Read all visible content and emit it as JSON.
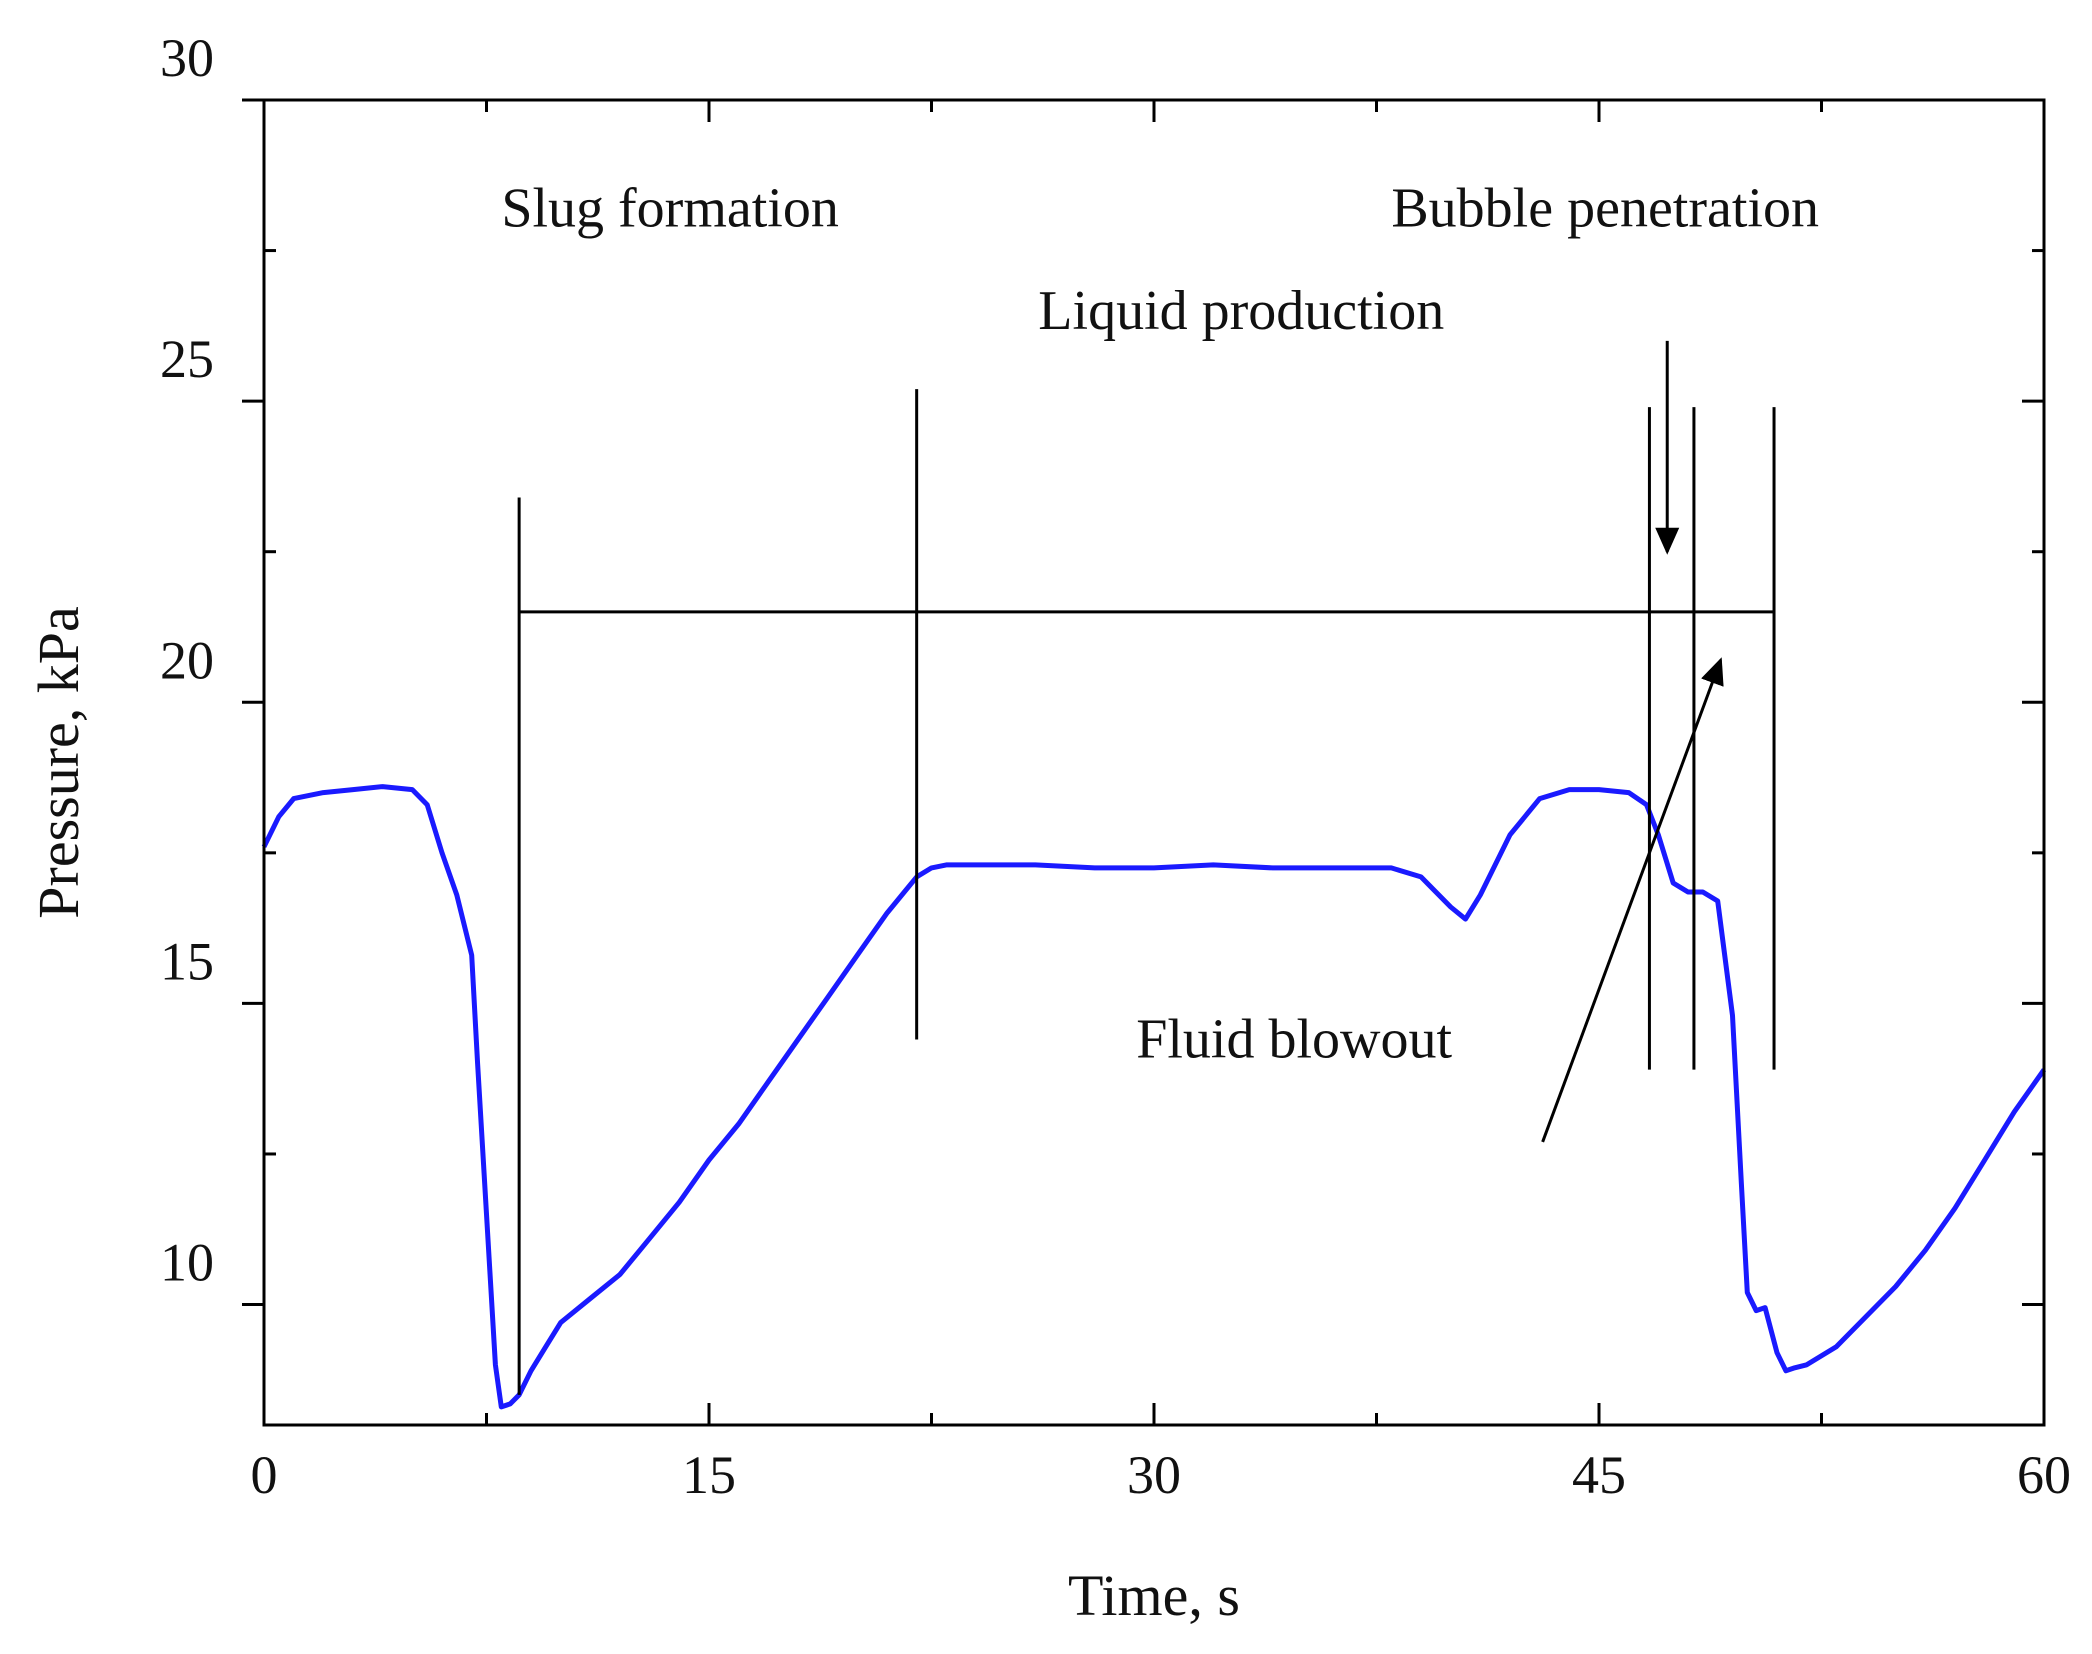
{
  "chart_data": {
    "type": "line",
    "title": "",
    "xlabel": "Time, s",
    "ylabel": "Pressure, kPa",
    "xlim": [
      0,
      60
    ],
    "ylim": [
      8,
      30
    ],
    "x_ticks": [
      0,
      15,
      30,
      45,
      60
    ],
    "x_tick_labels": [
      "0",
      "15",
      "30",
      "45",
      "60"
    ],
    "x_minor_ticks": [
      7.5,
      22.5,
      37.5,
      52.5
    ],
    "y_ticks": [
      10,
      15,
      20,
      25,
      30
    ],
    "y_tick_labels": [
      "10",
      "15",
      "20",
      "25",
      "30"
    ],
    "y_minor_ticks": [
      12.5,
      17.5,
      22.5,
      27.5
    ],
    "grid": false,
    "series": [
      {
        "name": "Pressure",
        "color": "#1a1aff",
        "x": [
          0,
          0.5,
          1,
          2,
          3,
          4,
          5,
          5.5,
          6,
          6.5,
          7,
          7.2,
          7.5,
          7.8,
          8.0,
          8.3,
          8.6,
          9.0,
          9.5,
          10,
          11,
          12,
          13,
          14,
          15,
          16,
          17,
          18,
          19,
          20,
          21,
          22,
          22.5,
          23,
          24,
          26,
          28,
          30,
          32,
          34,
          36,
          38,
          39,
          40,
          40.5,
          41,
          42,
          43,
          44,
          45,
          46,
          46.6,
          47,
          47.5,
          48,
          48.5,
          49,
          49.5,
          49.8,
          50.0,
          50.3,
          50.6,
          51.0,
          51.3,
          51.6,
          52,
          53,
          54,
          55,
          56,
          57,
          58,
          59,
          60
        ],
        "y": [
          17.6,
          18.1,
          18.4,
          18.5,
          18.55,
          18.6,
          18.55,
          18.3,
          17.5,
          16.8,
          15.8,
          14.0,
          11.5,
          9.0,
          8.3,
          8.35,
          8.5,
          8.9,
          9.3,
          9.7,
          10.1,
          10.5,
          11.1,
          11.7,
          12.4,
          13.0,
          13.7,
          14.4,
          15.1,
          15.8,
          16.5,
          17.1,
          17.25,
          17.3,
          17.3,
          17.3,
          17.25,
          17.25,
          17.3,
          17.25,
          17.25,
          17.25,
          17.1,
          16.6,
          16.4,
          16.8,
          17.8,
          18.4,
          18.55,
          18.55,
          18.5,
          18.3,
          17.8,
          17.0,
          16.85,
          16.85,
          16.7,
          14.8,
          12.0,
          10.2,
          9.9,
          9.95,
          9.2,
          8.9,
          8.95,
          9.0,
          9.3,
          9.8,
          10.3,
          10.9,
          11.6,
          12.4,
          13.2,
          13.9
        ]
      }
    ],
    "vertical_markers": [
      {
        "x": 8.6,
        "y_from": 8.5,
        "y_to": 23.4
      },
      {
        "x": 22.0,
        "y_from": 14.4,
        "y_to": 25.2
      },
      {
        "x": 46.7,
        "y_from": 13.9,
        "y_to": 24.9
      },
      {
        "x": 48.2,
        "y_from": 13.9,
        "y_to": 24.9
      },
      {
        "x": 50.9,
        "y_from": 13.9,
        "y_to": 24.9
      }
    ],
    "horizontal_span": {
      "x_from": 8.6,
      "x_to": 50.9,
      "y": 21.5
    },
    "annotations": [
      {
        "text": "Slug formation",
        "x": 8.0,
        "y": 27.9,
        "anchor": "start"
      },
      {
        "text": "Bubble penetration",
        "x": 38.0,
        "y": 27.9,
        "anchor": "start"
      },
      {
        "text": "Liquid production",
        "x": 26.1,
        "y": 26.2,
        "anchor": "start"
      },
      {
        "text": "Fluid blowout",
        "x": 29.4,
        "y": 14.1,
        "anchor": "start"
      }
    ],
    "arrows": [
      {
        "label": "Liquid production",
        "x_from": 47.3,
        "y_from": 26.0,
        "x_to": 47.3,
        "y_to": 22.5
      },
      {
        "label": "Fluid blowout",
        "x_from": 43.1,
        "y_from": 12.7,
        "x_to": 49.1,
        "y_to": 20.7
      }
    ]
  }
}
